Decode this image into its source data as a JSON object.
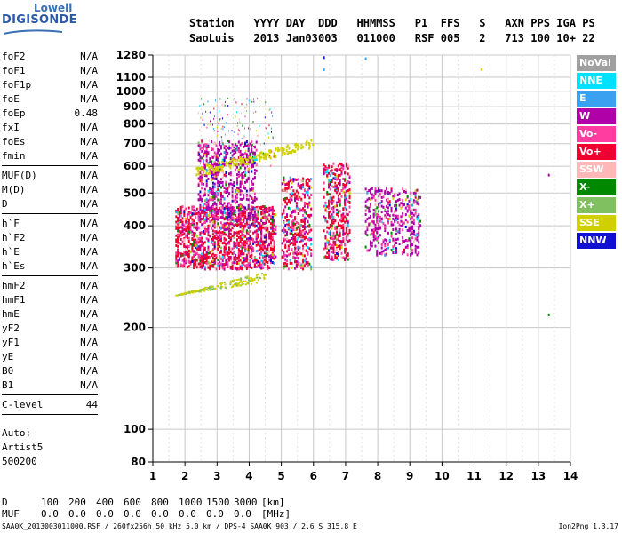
{
  "logo": {
    "line1": "Lowell",
    "line2": "DIGISONDE"
  },
  "header": {
    "labels": [
      "Station",
      "YYYY",
      "DAY",
      "DDD",
      "HHMMSS",
      "P1",
      "FFS",
      "S",
      "AXN",
      "PPS",
      "IGA",
      "PS"
    ],
    "values": [
      "SaoLuis",
      "2013",
      "Jan03",
      "003",
      "011000",
      "RSF",
      "005",
      "2",
      "713",
      "100",
      "10+",
      "22"
    ]
  },
  "params": {
    "group1": [
      {
        "name": "foF2",
        "value": "N/A"
      },
      {
        "name": "foF1",
        "value": "N/A"
      },
      {
        "name": "foF1p",
        "value": "N/A"
      },
      {
        "name": "foE",
        "value": "N/A"
      },
      {
        "name": "foEp",
        "value": "0.48"
      },
      {
        "name": "fxI",
        "value": "N/A"
      },
      {
        "name": "foEs",
        "value": "N/A"
      },
      {
        "name": "fmin",
        "value": "N/A"
      }
    ],
    "group2": [
      {
        "name": "MUF(D)",
        "value": "N/A"
      },
      {
        "name": "M(D)",
        "value": "N/A"
      },
      {
        "name": "D",
        "value": "N/A"
      }
    ],
    "group3": [
      {
        "name": "h`F",
        "value": "N/A"
      },
      {
        "name": "h`F2",
        "value": "N/A"
      },
      {
        "name": "h`E",
        "value": "N/A"
      },
      {
        "name": "h`Es",
        "value": "N/A"
      }
    ],
    "group4": [
      {
        "name": "hmF2",
        "value": "N/A"
      },
      {
        "name": "hmF1",
        "value": "N/A"
      },
      {
        "name": "hmE",
        "value": "N/A"
      },
      {
        "name": "yF2",
        "value": "N/A"
      },
      {
        "name": "yF1",
        "value": "N/A"
      },
      {
        "name": "yE",
        "value": "N/A"
      },
      {
        "name": "B0",
        "value": "N/A"
      },
      {
        "name": "B1",
        "value": "N/A"
      }
    ],
    "clevel": {
      "name": "C-level",
      "value": "44"
    }
  },
  "auto": {
    "line1": "Auto:",
    "line2": "Artist5",
    "line3": "500200"
  },
  "legend": [
    {
      "label": "NoVal",
      "color": "#a0a0a0"
    },
    {
      "label": "NNE",
      "color": "#00e0ff"
    },
    {
      "label": "E",
      "color": "#3aa0f0"
    },
    {
      "label": "W",
      "color": "#b000a8"
    },
    {
      "label": "Vo-",
      "color": "#ff3ca0"
    },
    {
      "label": "Vo+",
      "color": "#f00030"
    },
    {
      "label": "SSW",
      "color": "#ffb8b8"
    },
    {
      "label": "X-",
      "color": "#008800"
    },
    {
      "label": "X+",
      "color": "#80c060"
    },
    {
      "label": "SSE",
      "color": "#d0d000"
    },
    {
      "label": "NNW",
      "color": "#1010d0"
    }
  ],
  "dmuf": {
    "d_label": "D",
    "d_values": [
      "100",
      "200",
      "400",
      "600",
      "800",
      "1000",
      "1500",
      "3000"
    ],
    "d_unit": "[km]",
    "muf_label": "MUF",
    "muf_values": [
      "0.0",
      "0.0",
      "0.0",
      "0.0",
      "0.0",
      "0.0",
      "0.0",
      "0.0"
    ],
    "muf_unit": "[MHz]"
  },
  "footer": "SAA0K_2013003011000.RSF / 260fx256h 50 kHz 5.0 km / DPS-4 SAA0K 903 / 2.6 S 315.8 E",
  "version": "Ion2Png 1.3.17",
  "chart_data": {
    "type": "scatter",
    "xlabel": "",
    "ylabel": "",
    "xlim": [
      1,
      14
    ],
    "ylim": [
      80,
      1280
    ],
    "y_scale": "log",
    "x_ticks": [
      1,
      2,
      3,
      4,
      5,
      6,
      7,
      8,
      9,
      10,
      11,
      12,
      13,
      14
    ],
    "y_ticks": [
      80,
      100,
      200,
      300,
      400,
      500,
      600,
      700,
      800,
      900,
      1000,
      1100,
      1280
    ],
    "grid": true,
    "clusters": [
      {
        "name": "F trace 2-4 MHz",
        "x": [
          1.7,
          4.8
        ],
        "y": [
          300,
          460
        ],
        "dominant": "Vo+"
      },
      {
        "name": "F upper 2.4-4.2 MHz",
        "x": [
          2.4,
          4.2
        ],
        "y": [
          420,
          720
        ],
        "dominant": "W"
      },
      {
        "name": "spread column 5-5.8 MHz",
        "x": [
          5.0,
          5.9
        ],
        "y": [
          300,
          560
        ],
        "dominant": "Vo+"
      },
      {
        "name": "spread column 6.3-7 MHz",
        "x": [
          6.3,
          7.1
        ],
        "y": [
          320,
          620
        ],
        "dominant": "Vo+"
      },
      {
        "name": "spread column 7.5-9.3 MHz",
        "x": [
          7.6,
          9.3
        ],
        "y": [
          330,
          520
        ],
        "dominant": "W"
      },
      {
        "name": "SSE diagonal",
        "x": [
          2.3,
          6.0
        ],
        "y": [
          580,
          710
        ],
        "dominant": "SSE"
      },
      {
        "name": "E trace",
        "x": [
          1.7,
          4.5
        ],
        "y": [
          250,
          290
        ],
        "dominant": "SSE"
      }
    ],
    "scattered_points": [
      {
        "x": 6.3,
        "y": 1270,
        "mode": "NNW"
      },
      {
        "x": 6.3,
        "y": 1170,
        "mode": "E"
      },
      {
        "x": 7.6,
        "y": 1260,
        "mode": "E"
      },
      {
        "x": 11.2,
        "y": 1170,
        "mode": "SSE"
      },
      {
        "x": 13.3,
        "y": 570,
        "mode": "W"
      },
      {
        "x": 13.3,
        "y": 220,
        "mode": "X-"
      }
    ]
  }
}
